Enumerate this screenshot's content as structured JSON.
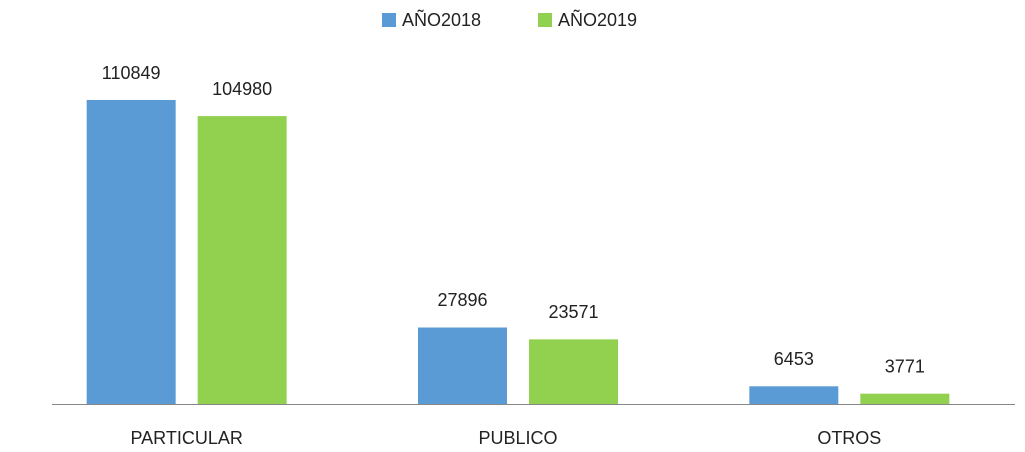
{
  "chart_data": {
    "type": "bar",
    "categories": [
      "PARTICULAR",
      "PUBLICO",
      "OTROS"
    ],
    "series": [
      {
        "name": "AÑO2018",
        "color": "#5b9bd5",
        "values": [
          110849,
          27896,
          6453
        ]
      },
      {
        "name": "AÑO2019",
        "color": "#92d050",
        "values": [
          104980,
          23571,
          3771
        ]
      }
    ],
    "legend": "top"
  }
}
